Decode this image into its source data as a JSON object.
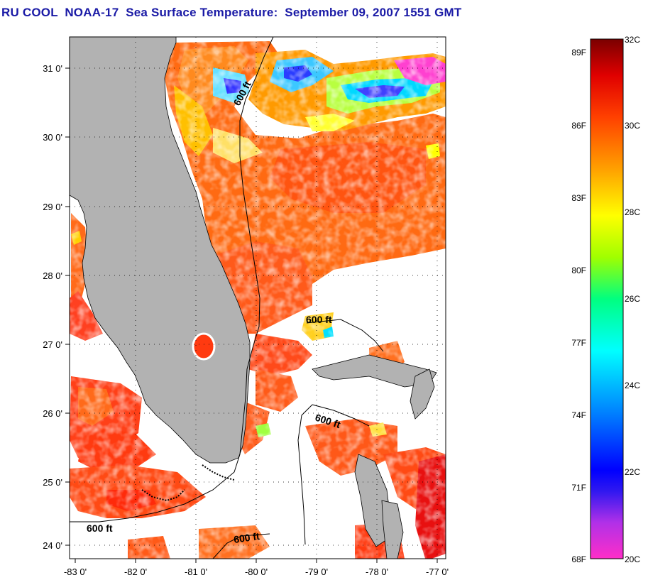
{
  "title": "RU COOL  NOAA-17  Sea Surface Temperature:  September 09, 2007 1551 GMT",
  "map": {
    "lon_range": [
      -83,
      -76.8
    ],
    "lat_range": [
      23.9,
      31.4
    ],
    "lon_ticks": [
      "-83 0'",
      "-82 0'",
      "-81 0'",
      "-80 0'",
      "-79 0'",
      "-78 0'",
      "-77 0'"
    ],
    "lat_ticks": [
      "24 0'",
      "25 0'",
      "26 0'",
      "27 0'",
      "28 0'",
      "29 0'",
      "30 0'",
      "31 0'"
    ],
    "isobath_label": "600 ft",
    "isobath_labels": [
      "600 ft",
      "600 ft",
      "600 ft",
      "600 ft",
      "600 ft"
    ],
    "land_color": "#b2b2b2",
    "cloud_color": "#ffffff"
  },
  "colorbar": {
    "fahrenheit": [
      "89F",
      "86F",
      "83F",
      "80F",
      "77F",
      "74F",
      "71F",
      "68F"
    ],
    "celsius": [
      "32C",
      "30C",
      "28C",
      "26C",
      "24C",
      "22C",
      "20C"
    ],
    "range_c": [
      20,
      32
    ],
    "gradient": [
      "#ff2ec8",
      "#a020f0",
      "#0000ff",
      "#00a0ff",
      "#00ffff",
      "#00ff60",
      "#c8ff00",
      "#ffff00",
      "#ffa000",
      "#ff4000",
      "#e00000",
      "#800000"
    ]
  }
}
